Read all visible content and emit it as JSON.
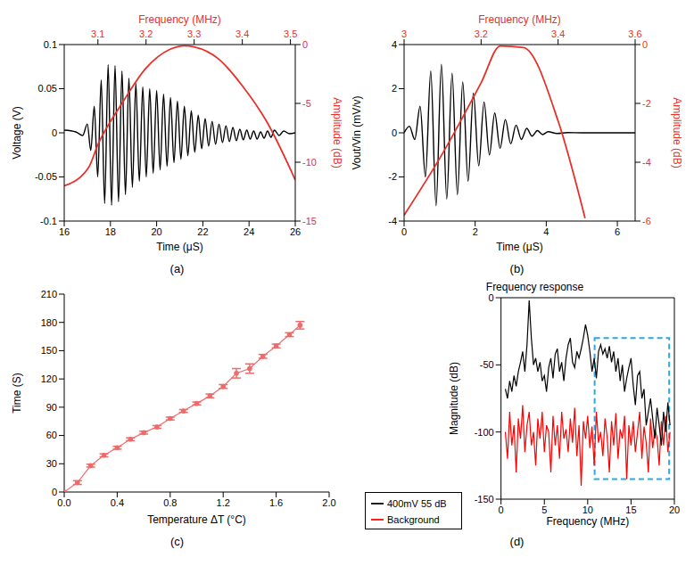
{
  "chart_data": [
    {
      "type": "line",
      "annotations": [
        "(a)"
      ],
      "xlabel": "Time (μS)",
      "ylabel": "Voltage (V)",
      "x2label": "Frequency (MHz)",
      "y2label": "Amplitude (dB)",
      "xlim": [
        16,
        26
      ],
      "xticks": [
        16,
        18,
        20,
        22,
        24,
        26
      ],
      "ylim": [
        -0.1,
        0.1
      ],
      "yticks": [
        -0.1,
        -0.05,
        0,
        0.05,
        0.1
      ],
      "x2lim": [
        3.03,
        3.51
      ],
      "x2ticks": [
        3.1,
        3.2,
        3.3,
        3.4,
        3.5
      ],
      "y2lim": [
        -15,
        0
      ],
      "y2ticks": [
        -15,
        -10,
        -5,
        0
      ],
      "series": [
        {
          "color": "#000000",
          "x": [
            16,
            16.5,
            16.8,
            17,
            17.15,
            17.3,
            17.45,
            17.6,
            17.75,
            17.9,
            18.05,
            18.2,
            18.35,
            18.5,
            18.65,
            18.8,
            18.95,
            19.1,
            19.25,
            19.4,
            19.55,
            19.7,
            19.85,
            20,
            20.15,
            20.3,
            20.45,
            20.6,
            20.75,
            20.9,
            21.05,
            21.2,
            21.35,
            21.5,
            21.65,
            21.8,
            21.95,
            22.1,
            22.25,
            22.4,
            22.55,
            22.7,
            22.85,
            23,
            23.15,
            23.3,
            23.45,
            23.6,
            23.75,
            23.9,
            24.05,
            24.2,
            24.35,
            24.5,
            24.65,
            24.8,
            24.95,
            25.1,
            25.3,
            25.5,
            25.75,
            26
          ],
          "values": [
            0.003,
            0.001,
            -0.003,
            0.01,
            -0.02,
            0.03,
            -0.05,
            0.06,
            -0.08,
            0.077,
            -0.082,
            0.076,
            -0.078,
            0.07,
            -0.07,
            0.062,
            -0.062,
            0.056,
            -0.055,
            0.052,
            -0.05,
            0.05,
            -0.046,
            0.048,
            -0.042,
            0.044,
            -0.038,
            0.04,
            -0.034,
            0.036,
            -0.03,
            0.03,
            -0.026,
            0.025,
            -0.022,
            0.02,
            -0.018,
            0.016,
            -0.015,
            0.013,
            -0.013,
            0.01,
            -0.011,
            0.008,
            -0.01,
            0.006,
            -0.009,
            0.004,
            -0.008,
            0.003,
            -0.007,
            0.002,
            -0.007,
            0.001,
            -0.006,
            0.002,
            -0.005,
            0.003,
            -0.003,
            0.002,
            -0.001,
            0
          ]
        },
        {
          "color": "#e8302a",
          "axis": "y2",
          "x": [
            3.03,
            3.08,
            3.1,
            3.15,
            3.2,
            3.25,
            3.28,
            3.3,
            3.35,
            3.4,
            3.45,
            3.51
          ],
          "values": [
            -12,
            -10.5,
            -8.5,
            -5,
            -2,
            -0.4,
            -0.1,
            -0.2,
            -1.2,
            -3.5,
            -6.5,
            -11.5
          ]
        }
      ]
    },
    {
      "type": "line",
      "annotations": [
        "(b)"
      ],
      "xlabel": "Time (μS)",
      "ylabel": "Vout/Vin (mV/v)",
      "x2label": "Frequency (MHz)",
      "y2label": "Amplitude (dB)",
      "xlim": [
        0,
        6.5
      ],
      "xticks": [
        0,
        2,
        4,
        6
      ],
      "ylim": [
        -4,
        4
      ],
      "yticks": [
        -4,
        -2,
        0,
        2,
        4
      ],
      "x2lim": [
        3,
        3.6
      ],
      "x2ticks": [
        3,
        3.2,
        3.4,
        3.6
      ],
      "y2lim": [
        -6,
        0
      ],
      "y2ticks": [
        -6,
        -4,
        -2,
        0
      ],
      "series": [
        {
          "color": "#000000",
          "x": [
            0,
            0.15,
            0.3,
            0.45,
            0.6,
            0.75,
            0.9,
            1.05,
            1.2,
            1.35,
            1.5,
            1.65,
            1.8,
            1.95,
            2.1,
            2.25,
            2.4,
            2.55,
            2.7,
            2.85,
            3,
            3.15,
            3.3,
            3.45,
            3.6,
            3.75,
            3.9,
            4.05,
            4.3,
            4.6,
            5,
            6.5
          ],
          "values": [
            0,
            0.3,
            -0.3,
            1.2,
            -2,
            2.8,
            -3.3,
            3.1,
            -3,
            2.7,
            -2.8,
            2.3,
            -2.2,
            1.8,
            -1.5,
            1.4,
            -1,
            0.9,
            -0.7,
            0.6,
            -0.5,
            0.35,
            -0.3,
            0.2,
            -0.15,
            0.1,
            -0.08,
            0.05,
            -0.03,
            0.01,
            0,
            0
          ]
        },
        {
          "color": "#e8302a",
          "axis": "y2",
          "x": [
            3,
            3.1,
            3.2,
            3.25,
            3.31,
            3.4,
            3.47
          ],
          "values": [
            -5.8,
            -3.7,
            -1.3,
            -0.05,
            -0.1,
            -2.6,
            -5.9
          ]
        }
      ]
    },
    {
      "type": "line",
      "annotations": [
        "(c)"
      ],
      "xlabel": "Temperature ΔT (°C)",
      "ylabel": "Time (S)",
      "xlim": [
        0,
        2
      ],
      "xticks": [
        {
          "value": 0,
          "label": "0.0"
        },
        0.4,
        0.8,
        1.2,
        1.6,
        {
          "value": 2,
          "label": "2.0"
        }
      ],
      "ylim": [
        0,
        210
      ],
      "yticks": [
        0,
        30,
        60,
        90,
        120,
        150,
        180,
        210
      ],
      "marker": "circle",
      "series": [
        {
          "color": "#ef6a6a",
          "x": [
            0,
            0.1,
            0.2,
            0.3,
            0.4,
            0.5,
            0.6,
            0.7,
            0.8,
            0.9,
            1,
            1.1,
            1.2,
            1.3,
            1.4,
            1.5,
            1.6,
            1.7,
            1.78
          ],
          "values": [
            0,
            10,
            28,
            39,
            47,
            56,
            63,
            69,
            78,
            86,
            94,
            102,
            112,
            126,
            131,
            144,
            155,
            167,
            177
          ],
          "errors": [
            0,
            2,
            1.5,
            1.5,
            1.5,
            1.5,
            1.5,
            1.5,
            1.5,
            1.5,
            1.5,
            2,
            2,
            5,
            5,
            2,
            2,
            2,
            4
          ]
        }
      ]
    },
    {
      "type": "line",
      "annotations": [
        "(d)"
      ],
      "title": "Frequency response",
      "xlabel": "Frequency (MHz)",
      "ylabel": "Magnitude (dB)",
      "xlim": [
        0,
        20
      ],
      "xticks": [
        0,
        5,
        10,
        15,
        20
      ],
      "ylim": [
        -150,
        0
      ],
      "yticks": [
        -150,
        -100,
        -50,
        0
      ],
      "legend": "bottom",
      "highlight": {
        "x": [
          10.8,
          19.4
        ],
        "y": [
          -135,
          -30
        ],
        "color": "#2aa8e0"
      },
      "x": [
        0.5,
        0.75,
        1,
        1.25,
        1.5,
        1.75,
        2,
        2.25,
        2.5,
        2.75,
        3,
        3.25,
        3.5,
        3.75,
        4,
        4.25,
        4.5,
        4.75,
        5,
        5.25,
        5.5,
        5.75,
        6,
        6.25,
        6.5,
        6.75,
        7,
        7.25,
        7.5,
        7.75,
        8,
        8.25,
        8.5,
        8.75,
        9,
        9.25,
        9.5,
        9.75,
        10,
        10.25,
        10.5,
        10.75,
        11,
        11.25,
        11.5,
        11.75,
        12,
        12.25,
        12.5,
        12.75,
        13,
        13.25,
        13.5,
        13.75,
        14,
        14.25,
        14.5,
        14.75,
        15,
        15.25,
        15.5,
        15.75,
        16,
        16.25,
        16.5,
        16.75,
        17,
        17.25,
        17.5,
        17.75,
        18,
        18.25,
        18.5,
        18.75,
        19,
        19.25,
        19.5
      ],
      "series": [
        {
          "name": "Background",
          "color": "#ff0000",
          "values": [
            -100,
            -120,
            -85,
            -110,
            -95,
            -130,
            -90,
            -105,
            -80,
            -115,
            -95,
            -85,
            -110,
            -100,
            -125,
            -90,
            -105,
            -85,
            -115,
            -95,
            -100,
            -130,
            -88,
            -110,
            -95,
            -120,
            -85,
            -105,
            -98,
            -115,
            -90,
            -108,
            -82,
            -118,
            -95,
            -140,
            -92,
            -105,
            -88,
            -112,
            -96,
            -125,
            -85,
            -108,
            -100,
            -118,
            -90,
            -104,
            -130,
            -92,
            -110,
            -86,
            -120,
            -98,
            -105,
            -88,
            -135,
            -95,
            -110,
            -92,
            -115,
            -100,
            -85,
            -120,
            -96,
            -108,
            -130,
            -90,
            -112,
            -98,
            -104,
            -125,
            -92,
            -110,
            -88,
            -115,
            -100
          ]
        },
        {
          "name": "400mV 55 dB",
          "color": "#000000",
          "values": [
            -68,
            -75,
            -62,
            -70,
            -58,
            -66,
            -55,
            -48,
            -40,
            -55,
            -35,
            -2,
            -30,
            -50,
            -45,
            -55,
            -48,
            -62,
            -58,
            -70,
            -52,
            -45,
            -60,
            -42,
            -38,
            -55,
            -48,
            -62,
            -45,
            -35,
            -30,
            -48,
            -52,
            -40,
            -45,
            -38,
            -30,
            -20,
            -28,
            -40,
            -55,
            -45,
            -60,
            -40,
            -35,
            -42,
            -38,
            -45,
            -36,
            -48,
            -40,
            -55,
            -45,
            -62,
            -50,
            -70,
            -60,
            -52,
            -45,
            -65,
            -80,
            -58,
            -55,
            -75,
            -68,
            -95,
            -85,
            -75,
            -90,
            -105,
            -82,
            -95,
            -110,
            -85,
            -100,
            -78,
            -95
          ]
        }
      ]
    }
  ]
}
